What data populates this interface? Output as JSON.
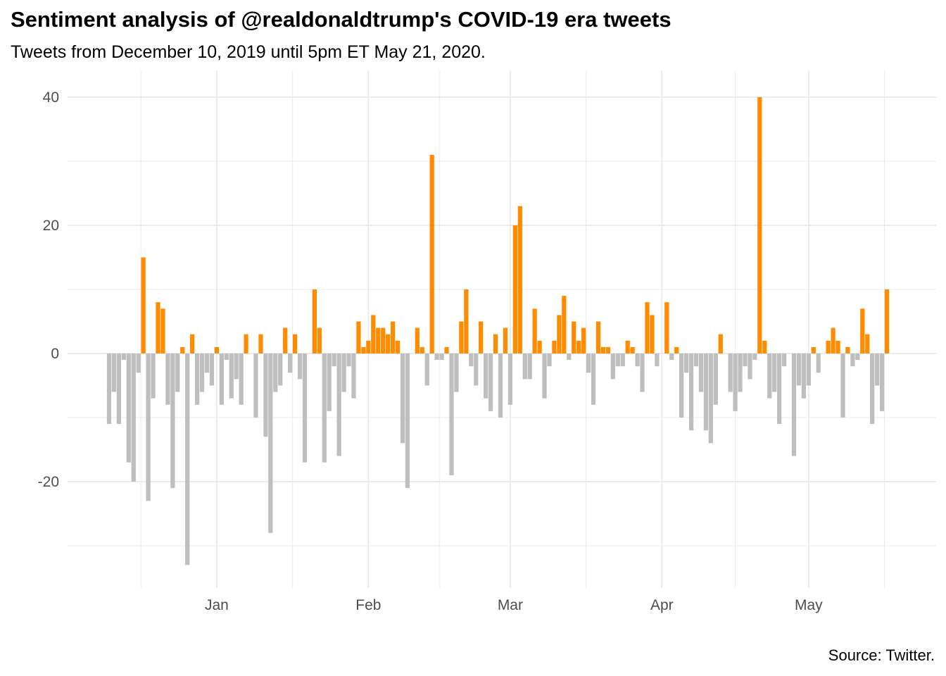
{
  "chart_data": {
    "type": "bar",
    "title": "Sentiment analysis of @realdonaldtrump's COVID-19 era tweets",
    "subtitle": "Tweets from December 10, 2019 until 5pm ET May 21, 2020.",
    "caption": "Source: Twitter.",
    "xlabel": "",
    "ylabel": "",
    "x_start": "2019-12-10",
    "x_end": "2020-05-21",
    "ylim": [
      -36,
      42
    ],
    "yticks": [
      40,
      20,
      0,
      -20
    ],
    "ytick_labels": [
      "40",
      "20",
      "0",
      "-20"
    ],
    "xticks": [
      {
        "date": "2020-01-01",
        "label": "Jan"
      },
      {
        "date": "2020-02-01",
        "label": "Feb"
      },
      {
        "date": "2020-03-01",
        "label": "Mar"
      },
      {
        "date": "2020-04-01",
        "label": "Apr"
      },
      {
        "date": "2020-05-01",
        "label": "May"
      }
    ],
    "grid": true,
    "colors": {
      "positive": "#FF8C00",
      "negative": "#BEBEBE",
      "grid": "#EBEBEB"
    },
    "values": [
      -11,
      -6,
      -11,
      -1,
      -17,
      -20,
      -3,
      15,
      -23,
      -7,
      8,
      7,
      -8,
      -21,
      -6,
      1,
      -33,
      3,
      -8,
      -6,
      -3,
      -5,
      1,
      -8,
      -1,
      -7,
      -4,
      -8,
      3,
      0,
      -10,
      3,
      -13,
      -28,
      -6,
      -5,
      4,
      -3,
      3,
      -4,
      -17,
      0,
      10,
      4,
      -17,
      -9,
      -2,
      -16,
      -6,
      -2,
      -7,
      5,
      1,
      2,
      6,
      4,
      4,
      3,
      5,
      2,
      -14,
      -21,
      0,
      4,
      1,
      -5,
      31,
      -1,
      -1,
      1,
      -19,
      -6,
      5,
      10,
      -2,
      -5,
      5,
      -7,
      -9,
      3,
      -10,
      4,
      -8,
      20,
      23,
      -4,
      -4,
      7,
      2,
      -7,
      -2,
      2,
      6,
      9,
      -1,
      5,
      2,
      4,
      -3,
      -8,
      5,
      1,
      1,
      -4,
      -2,
      -2,
      2,
      1,
      -2,
      -6,
      8,
      6,
      -2,
      0,
      8,
      -1,
      1,
      -10,
      -3,
      -12,
      -2,
      -6,
      -12,
      -14,
      -8,
      3,
      0,
      -6,
      -9,
      -6,
      -2,
      -4,
      -1,
      40,
      2,
      -7,
      -6,
      -11,
      -2,
      0,
      -16,
      -5,
      -7,
      -5,
      1,
      -3,
      0,
      2,
      4,
      2,
      -10,
      1,
      -2,
      -1,
      7,
      3,
      -11,
      -5,
      -9,
      10
    ]
  }
}
